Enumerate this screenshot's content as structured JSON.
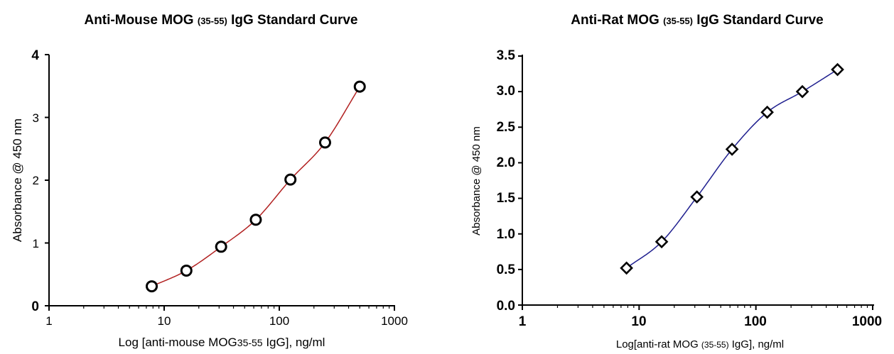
{
  "chart_data": [
    {
      "type": "scatter",
      "title": {
        "prefix": "Anti-Mouse MOG ",
        "sub": "(35-55)",
        "suffix": " IgG Standard Curve"
      },
      "xlabel": {
        "prefix": "Log [anti-mouse MOG",
        "sub": "35-55",
        "suffix": " IgG], ng/ml"
      },
      "ylabel": "Absorbance @ 450 nm",
      "xscale": "log",
      "xlim": [
        1,
        1000
      ],
      "ylim": [
        0,
        4
      ],
      "xticks": [
        "1",
        "10",
        "100",
        "1000"
      ],
      "yticks": [
        "0",
        "1",
        "2",
        "3",
        "4"
      ],
      "marker": "circle",
      "curve_color": "#b22222",
      "series": [
        {
          "x": [
            7.8,
            15.6,
            31.25,
            62.5,
            125,
            250,
            500
          ],
          "y": [
            0.31,
            0.56,
            0.94,
            1.37,
            2.01,
            2.6,
            3.49
          ]
        }
      ]
    },
    {
      "type": "scatter",
      "title": {
        "prefix": "Anti-Rat MOG ",
        "sub": "(35-55)",
        "suffix": " IgG Standard Curve"
      },
      "xlabel": {
        "prefix": "Log[anti-rat MOG ",
        "sub": "(35-55)",
        "suffix": " IgG], ng/ml"
      },
      "ylabel": "Absorbance @ 450 nm",
      "xscale": "log",
      "xlim": [
        1,
        1000
      ],
      "ylim": [
        0,
        3.5
      ],
      "xticks": [
        "1",
        "10",
        "100",
        "1000"
      ],
      "yticks": [
        "0.0",
        "0.5",
        "1.0",
        "1.5",
        "2.0",
        "2.5",
        "3.0",
        "3.5"
      ],
      "marker": "diamond",
      "curve_color": "#1f1f8f",
      "series": [
        {
          "x": [
            7.8,
            15.6,
            31.25,
            62.5,
            125,
            250,
            500
          ],
          "y": [
            0.52,
            0.89,
            1.52,
            2.19,
            2.71,
            3.0,
            3.31
          ]
        }
      ]
    }
  ]
}
